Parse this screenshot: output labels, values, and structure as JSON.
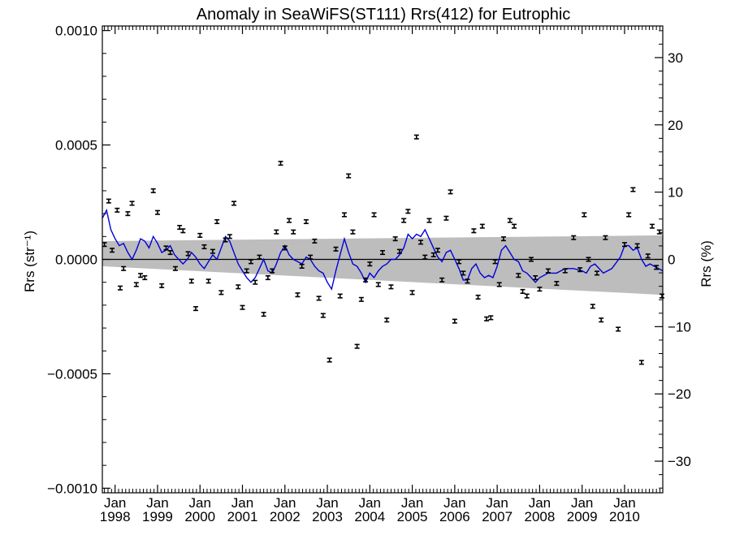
{
  "chart_data": {
    "type": "scatter",
    "title": "Anomaly in SeaWiFS(ST111) Rrs(412) for Eutrophic",
    "ylabel_left": "Rrs (str⁻¹)",
    "ylabel_right": "Rrs (%)",
    "xlim": [
      1997.7,
      2010.9
    ],
    "ylim_left": [
      -0.00102,
      0.00102
    ],
    "ylim_right": [
      -34.7,
      34.7
    ],
    "left_ticks": [
      {
        "value": 0.001,
        "label": "0.0010"
      },
      {
        "value": 0.0005,
        "label": "0.0005"
      },
      {
        "value": 0.0,
        "label": "0.0000"
      },
      {
        "value": -0.0005,
        "label": "−0.0005"
      },
      {
        "value": -0.001,
        "label": "−0.0010"
      }
    ],
    "right_ticks": [
      {
        "value": 30,
        "label": "30"
      },
      {
        "value": 20,
        "label": "20"
      },
      {
        "value": 10,
        "label": "10"
      },
      {
        "value": 0,
        "label": "0"
      },
      {
        "value": -10,
        "label": "−10"
      },
      {
        "value": -20,
        "label": "−20"
      },
      {
        "value": -30,
        "label": "−30"
      }
    ],
    "x_ticks": [
      {
        "value": 1998,
        "month": "Jan",
        "year": "1998"
      },
      {
        "value": 1999,
        "month": "Jan",
        "year": "1999"
      },
      {
        "value": 2000,
        "month": "Jan",
        "year": "2000"
      },
      {
        "value": 2001,
        "month": "Jan",
        "year": "2001"
      },
      {
        "value": 2002,
        "month": "Jan",
        "year": "2002"
      },
      {
        "value": 2003,
        "month": "Jan",
        "year": "2003"
      },
      {
        "value": 2004,
        "month": "Jan",
        "year": "2004"
      },
      {
        "value": 2005,
        "month": "Jan",
        "year": "2005"
      },
      {
        "value": 2006,
        "month": "Jan",
        "year": "2006"
      },
      {
        "value": 2007,
        "month": "Jan",
        "year": "2007"
      },
      {
        "value": 2008,
        "month": "Jan",
        "year": "2008"
      },
      {
        "value": 2009,
        "month": "Jan",
        "year": "2009"
      },
      {
        "value": 2010,
        "month": "Jan",
        "year": "2010"
      }
    ],
    "uncertainty_band": {
      "x": [
        1997.7,
        2010.9
      ],
      "upper": [
        8e-05,
        0.000105
      ],
      "lower": [
        -3e-05,
        -0.000155
      ]
    },
    "zero_line": 0,
    "points": [
      {
        "x": 1997.75,
        "y": 6.5e-05
      },
      {
        "x": 1997.85,
        "y": 0.000255
      },
      {
        "x": 1997.93,
        "y": 4e-05
      },
      {
        "x": 1998.05,
        "y": 0.000215
      },
      {
        "x": 1998.12,
        "y": -0.000125
      },
      {
        "x": 1998.2,
        "y": -4e-05
      },
      {
        "x": 1998.3,
        "y": 0.0002
      },
      {
        "x": 1998.4,
        "y": 0.000245
      },
      {
        "x": 1998.5,
        "y": -0.00011
      },
      {
        "x": 1998.6,
        "y": -7e-05
      },
      {
        "x": 1998.7,
        "y": -8e-05
      },
      {
        "x": 1998.9,
        "y": 0.0003
      },
      {
        "x": 1999.0,
        "y": 0.000205
      },
      {
        "x": 1999.1,
        "y": -0.000115
      },
      {
        "x": 1999.2,
        "y": 5e-05
      },
      {
        "x": 1999.3,
        "y": 3e-05
      },
      {
        "x": 1999.42,
        "y": -4e-05
      },
      {
        "x": 1999.52,
        "y": 0.00014
      },
      {
        "x": 1999.6,
        "y": 0.000125
      },
      {
        "x": 1999.72,
        "y": 2.5e-05
      },
      {
        "x": 1999.8,
        "y": -9.5e-05
      },
      {
        "x": 1999.9,
        "y": -0.000215
      },
      {
        "x": 2000.0,
        "y": 0.000105
      },
      {
        "x": 2000.1,
        "y": 5.5e-05
      },
      {
        "x": 2000.2,
        "y": -9.5e-05
      },
      {
        "x": 2000.3,
        "y": 3.5e-05
      },
      {
        "x": 2000.4,
        "y": 0.000165
      },
      {
        "x": 2000.5,
        "y": -0.000145
      },
      {
        "x": 2000.6,
        "y": 8.5e-05
      },
      {
        "x": 2000.7,
        "y": 0.0001
      },
      {
        "x": 2000.8,
        "y": 0.000245
      },
      {
        "x": 2000.9,
        "y": -0.00012
      },
      {
        "x": 2001.0,
        "y": -0.00021
      },
      {
        "x": 2001.1,
        "y": -5e-05
      },
      {
        "x": 2001.2,
        "y": -1e-05
      },
      {
        "x": 2001.3,
        "y": -0.0001
      },
      {
        "x": 2001.4,
        "y": 1e-05
      },
      {
        "x": 2001.5,
        "y": -0.00024
      },
      {
        "x": 2001.6,
        "y": -8e-05
      },
      {
        "x": 2001.7,
        "y": -5e-05
      },
      {
        "x": 2001.8,
        "y": 0.00012
      },
      {
        "x": 2001.9,
        "y": 0.00042
      },
      {
        "x": 2002.0,
        "y": 5e-05
      },
      {
        "x": 2002.1,
        "y": 0.00017
      },
      {
        "x": 2002.2,
        "y": 0.00012
      },
      {
        "x": 2002.3,
        "y": -0.000155
      },
      {
        "x": 2002.4,
        "y": -3e-05
      },
      {
        "x": 2002.5,
        "y": 0.000165
      },
      {
        "x": 2002.6,
        "y": 1e-05
      },
      {
        "x": 2002.7,
        "y": 8e-05
      },
      {
        "x": 2002.8,
        "y": -0.00017
      },
      {
        "x": 2002.9,
        "y": -0.000245
      },
      {
        "x": 2003.05,
        "y": -0.00044
      },
      {
        "x": 2003.2,
        "y": 4.5e-05
      },
      {
        "x": 2003.3,
        "y": -0.00016
      },
      {
        "x": 2003.4,
        "y": 0.000195
      },
      {
        "x": 2003.5,
        "y": 0.000365
      },
      {
        "x": 2003.6,
        "y": 0.00012
      },
      {
        "x": 2003.7,
        "y": -0.00038
      },
      {
        "x": 2003.8,
        "y": -0.000175
      },
      {
        "x": 2003.9,
        "y": -9e-05
      },
      {
        "x": 2004.0,
        "y": -2e-05
      },
      {
        "x": 2004.1,
        "y": 0.000195
      },
      {
        "x": 2004.2,
        "y": -0.00011
      },
      {
        "x": 2004.3,
        "y": 3e-05
      },
      {
        "x": 2004.4,
        "y": -0.000265
      },
      {
        "x": 2004.5,
        "y": -0.00012
      },
      {
        "x": 2004.6,
        "y": 9e-05
      },
      {
        "x": 2004.7,
        "y": 3.5e-05
      },
      {
        "x": 2004.8,
        "y": 0.00017
      },
      {
        "x": 2004.9,
        "y": 0.00021
      },
      {
        "x": 2005.0,
        "y": -0.000145
      },
      {
        "x": 2005.1,
        "y": 0.000535
      },
      {
        "x": 2005.2,
        "y": 7.5e-05
      },
      {
        "x": 2005.3,
        "y": 1e-05
      },
      {
        "x": 2005.4,
        "y": 0.00017
      },
      {
        "x": 2005.5,
        "y": 2e-05
      },
      {
        "x": 2005.6,
        "y": 4e-05
      },
      {
        "x": 2005.7,
        "y": -9e-05
      },
      {
        "x": 2005.8,
        "y": 0.00018
      },
      {
        "x": 2005.9,
        "y": 0.000295
      },
      {
        "x": 2006.0,
        "y": -0.00027
      },
      {
        "x": 2006.1,
        "y": -1e-05
      },
      {
        "x": 2006.2,
        "y": -6e-05
      },
      {
        "x": 2006.3,
        "y": -9.5e-05
      },
      {
        "x": 2006.45,
        "y": 0.000125
      },
      {
        "x": 2006.55,
        "y": -0.000165
      },
      {
        "x": 2006.65,
        "y": 0.000145
      },
      {
        "x": 2006.75,
        "y": -0.00026
      },
      {
        "x": 2006.85,
        "y": -0.000255
      },
      {
        "x": 2006.95,
        "y": -1e-05
      },
      {
        "x": 2007.05,
        "y": -0.00011
      },
      {
        "x": 2007.15,
        "y": 9e-05
      },
      {
        "x": 2007.3,
        "y": 0.00017
      },
      {
        "x": 2007.4,
        "y": 0.000145
      },
      {
        "x": 2007.5,
        "y": -7e-05
      },
      {
        "x": 2007.6,
        "y": -0.00014
      },
      {
        "x": 2007.7,
        "y": -0.00016
      },
      {
        "x": 2007.8,
        "y": 0.0
      },
      {
        "x": 2007.9,
        "y": -8e-05
      },
      {
        "x": 2008.0,
        "y": -0.00013
      },
      {
        "x": 2008.2,
        "y": -5e-05
      },
      {
        "x": 2008.4,
        "y": -0.000105
      },
      {
        "x": 2008.6,
        "y": -5e-05
      },
      {
        "x": 2008.8,
        "y": 9.5e-05
      },
      {
        "x": 2008.95,
        "y": -4.5e-05
      },
      {
        "x": 2009.05,
        "y": 0.000195
      },
      {
        "x": 2009.15,
        "y": 0.0
      },
      {
        "x": 2009.25,
        "y": -0.000205
      },
      {
        "x": 2009.35,
        "y": -6e-05
      },
      {
        "x": 2009.45,
        "y": -0.000265
      },
      {
        "x": 2009.55,
        "y": 9.5e-05
      },
      {
        "x": 2009.85,
        "y": -0.000305
      },
      {
        "x": 2010.0,
        "y": 6.5e-05
      },
      {
        "x": 2010.1,
        "y": 0.000195
      },
      {
        "x": 2010.2,
        "y": 0.000305
      },
      {
        "x": 2010.3,
        "y": 6e-05
      },
      {
        "x": 2010.4,
        "y": -0.00045
      },
      {
        "x": 2010.55,
        "y": 1.5e-05
      },
      {
        "x": 2010.65,
        "y": 0.000145
      },
      {
        "x": 2010.75,
        "y": -3.5e-05
      },
      {
        "x": 2010.82,
        "y": 0.00012
      },
      {
        "x": 2010.88,
        "y": -0.00016
      }
    ],
    "error_bar_half": 8e-06,
    "smoothed_line": {
      "color": "#0000dd",
      "x": [
        1997.7,
        1997.8,
        1997.9,
        1998.0,
        1998.1,
        1998.2,
        1998.3,
        1998.4,
        1998.5,
        1998.6,
        1998.7,
        1998.8,
        1998.9,
        1999.0,
        1999.1,
        1999.2,
        1999.3,
        1999.4,
        1999.5,
        1999.6,
        1999.7,
        1999.8,
        1999.9,
        2000.0,
        2000.1,
        2000.2,
        2000.3,
        2000.4,
        2000.5,
        2000.6,
        2000.7,
        2000.8,
        2000.9,
        2001.0,
        2001.1,
        2001.2,
        2001.3,
        2001.4,
        2001.5,
        2001.6,
        2001.7,
        2001.8,
        2001.9,
        2002.0,
        2002.1,
        2002.2,
        2002.3,
        2002.4,
        2002.5,
        2002.6,
        2002.7,
        2002.8,
        2002.9,
        2003.0,
        2003.1,
        2003.2,
        2003.3,
        2003.4,
        2003.5,
        2003.6,
        2003.7,
        2003.8,
        2003.9,
        2004.0,
        2004.1,
        2004.2,
        2004.3,
        2004.4,
        2004.5,
        2004.6,
        2004.7,
        2004.8,
        2004.9,
        2005.0,
        2005.1,
        2005.2,
        2005.3,
        2005.4,
        2005.5,
        2005.6,
        2005.7,
        2005.8,
        2005.9,
        2006.0,
        2006.1,
        2006.2,
        2006.3,
        2006.4,
        2006.5,
        2006.6,
        2006.7,
        2006.8,
        2006.9,
        2007.0,
        2007.1,
        2007.2,
        2007.3,
        2007.4,
        2007.5,
        2007.6,
        2007.7,
        2007.8,
        2007.9,
        2008.0,
        2008.2,
        2008.4,
        2008.6,
        2008.8,
        2009.0,
        2009.1,
        2009.2,
        2009.3,
        2009.5,
        2009.7,
        2009.9,
        2010.0,
        2010.1,
        2010.2,
        2010.3,
        2010.4,
        2010.5,
        2010.6,
        2010.7,
        2010.8,
        2010.9
      ],
      "y": [
        0.00018,
        0.000215,
        0.00013,
        9e-05,
        6e-05,
        7e-05,
        3e-05,
        0.0,
        4e-05,
        9e-05,
        8e-05,
        5e-05,
        0.0001,
        7e-05,
        3e-05,
        4e-05,
        6e-05,
        2e-05,
        0.0,
        -2e-05,
        0.0,
        3e-05,
        1e-05,
        -2e-05,
        -4e-05,
        -1e-05,
        2e-05,
        0.0,
        5e-05,
        0.0001,
        8e-05,
        3e-05,
        -2e-05,
        -5e-05,
        -8e-05,
        -0.0001,
        -8e-05,
        -4e-05,
        0.0,
        -5e-05,
        -6e-05,
        -2e-05,
        3e-05,
        6e-05,
        2e-05,
        0.0,
        -1e-05,
        -2e-05,
        1e-05,
        0.0,
        -3e-05,
        -5e-05,
        -6e-05,
        -0.0001,
        -0.00013,
        -5e-05,
        2e-05,
        9e-05,
        3e-05,
        -2e-05,
        -3e-05,
        -6e-05,
        -0.0001,
        -6e-05,
        -8e-05,
        -5e-05,
        -3e-05,
        -2e-05,
        0.0,
        0.0,
        2e-05,
        5e-05,
        0.00011,
        9e-05,
        0.00011,
        0.0001,
        0.00013,
        9e-05,
        5e-05,
        1e-05,
        -1e-05,
        3e-05,
        4e-05,
        0.0,
        -4e-05,
        -9e-05,
        -9e-05,
        -4e-05,
        -2e-05,
        -6e-05,
        -8e-05,
        -7e-05,
        -8e-05,
        -3e-05,
        4e-05,
        6e-05,
        3e-05,
        0.0,
        -1e-05,
        -5e-05,
        -6e-05,
        -8e-05,
        -0.0001,
        -8e-05,
        -6e-05,
        -6e-05,
        -4e-05,
        -4e-05,
        -5e-05,
        -6e-05,
        -3e-05,
        -2e-05,
        -6e-05,
        -4e-05,
        1e-05,
        6e-05,
        6e-05,
        4e-05,
        5e-05,
        0.0,
        -3e-05,
        -2e-05,
        -3e-05,
        -4e-05,
        -5e-05
      ]
    }
  }
}
